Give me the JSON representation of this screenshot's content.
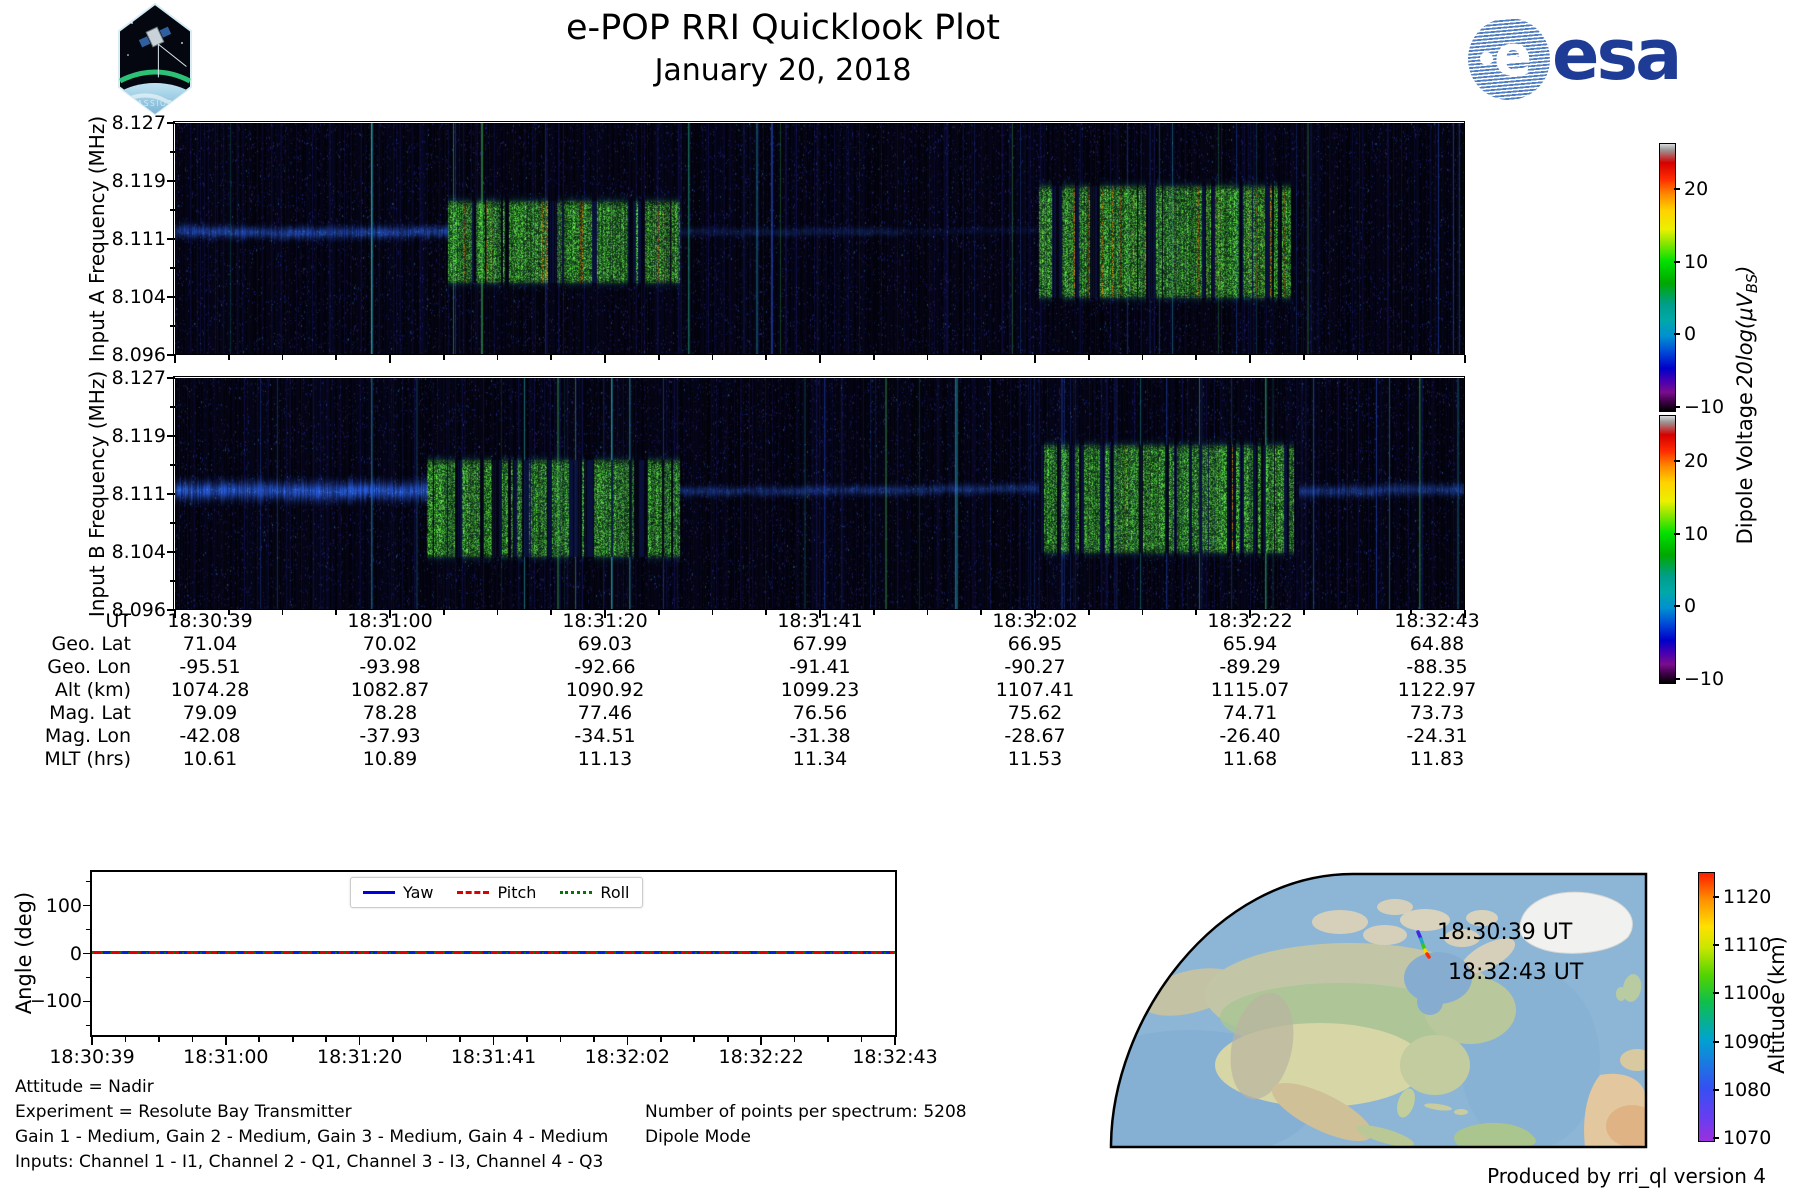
{
  "header": {
    "title": "e-POP RRI Quicklook Plot",
    "date": "January 20, 2018"
  },
  "logos": {
    "cassiope": "CASSIOPE",
    "esa": "esa"
  },
  "colorbar_label": {
    "text": "Dipole Voltage",
    "math": "20log(μV",
    "sub": "BS",
    "close": ")"
  },
  "annotations": {
    "left": [
      "Attitude = Nadir",
      "Experiment = Resolute Bay Transmitter",
      "Gain 1 - Medium, Gain 2 - Medium, Gain 3 - Medium, Gain 4 - Medium",
      "Inputs: Channel 1 - I1, Channel 2 - Q1, Channel 3 - I3, Channel 4 - Q3"
    ],
    "right": [
      "Number of points per spectrum: 5208",
      "Dipole Mode"
    ]
  },
  "map": {
    "start_label": "18:30:39 UT",
    "end_label": "18:32:43 UT"
  },
  "footer": {
    "credit": "Produced by rri_ql version 4"
  },
  "chart_data": [
    {
      "id": "spectrogram_A",
      "type": "heatmap",
      "ylabel": "Input A Frequency (MHz)",
      "xlabel": "UT",
      "x_range": [
        "18:30:39",
        "18:32:43"
      ],
      "y_range": [
        8.096,
        8.127
      ],
      "y_ticks": [
        "8.127",
        "8.119",
        "8.111",
        "8.104",
        "8.096"
      ],
      "colorbar": {
        "ticks": [
          "20",
          "10",
          "0",
          "−10"
        ],
        "range": [
          -13,
          27
        ],
        "cmap": "nipy_spectral"
      },
      "features": {
        "carrier_band_mhz": 8.1125,
        "transmit_blocks": [
          {
            "start": "18:31:05",
            "end": "18:31:28",
            "f_low_mhz": 8.1055,
            "f_high_mhz": 8.1165
          },
          {
            "start": "18:32:02",
            "end": "18:32:27",
            "f_low_mhz": 8.1035,
            "f_high_mhz": 8.1185
          }
        ]
      },
      "render": {
        "seed": 11,
        "nlines": 26,
        "bright": [
          {
            "x": 0.152,
            "c": "#22c8da",
            "a": 0.8
          },
          {
            "x": 0.398,
            "c": "#27b88a",
            "a": 0.55
          }
        ],
        "band": {
          "freq": 8.1125,
          "segments": [
            {
              "x0": 0.0,
              "x1": 0.212,
              "amp": 0.55,
              "width": 4.0
            },
            {
              "x0": 0.392,
              "x1": 0.56,
              "amp": 0.2,
              "width": 3.2
            },
            {
              "x0": 0.56,
              "x1": 0.668,
              "amp": 0.09,
              "width": 3.0
            }
          ]
        },
        "blocks": [
          {
            "x0": 0.212,
            "x1": 0.392,
            "fHigh": 8.1165,
            "fLow": 8.1055,
            "gap": 0.24,
            "orange": 0.06
          },
          {
            "x0": 0.67,
            "x1": 0.868,
            "fHigh": 8.1185,
            "fLow": 8.1035,
            "gap": 0.27,
            "orange": 0.1
          }
        ]
      }
    },
    {
      "id": "spectrogram_B",
      "type": "heatmap",
      "ylabel": "Input B Frequency (MHz)",
      "xlabel": "UT",
      "x_range": [
        "18:30:39",
        "18:32:43"
      ],
      "y_range": [
        8.096,
        8.127
      ],
      "y_ticks": [
        "8.127",
        "8.119",
        "8.111",
        "8.104",
        "8.096"
      ],
      "colorbar": {
        "ticks": [
          "20",
          "10",
          "0",
          "−10"
        ],
        "range": [
          -13,
          27
        ],
        "cmap": "nipy_spectral"
      },
      "features": {
        "carrier_band_mhz": 8.112,
        "transmit_blocks": [
          {
            "start": "18:31:03",
            "end": "18:31:28",
            "f_low_mhz": 8.103,
            "f_high_mhz": 8.116
          },
          {
            "start": "18:32:02",
            "end": "18:32:27",
            "f_low_mhz": 8.1035,
            "f_high_mhz": 8.118
          }
        ]
      },
      "render": {
        "seed": 29,
        "nlines": 36,
        "bright": [
          {
            "x": 0.152,
            "c": "#2290d0",
            "a": 0.6
          },
          {
            "x": 0.338,
            "c": "#22c8da",
            "a": 0.7
          },
          {
            "x": 0.352,
            "c": "#2fb4e0",
            "a": 0.5
          },
          {
            "x": 0.845,
            "c": "#26c87c",
            "a": 0.6
          },
          {
            "x": 0.965,
            "c": "#2bbf4e",
            "a": 0.55
          }
        ],
        "band": {
          "freq": 8.112,
          "segments": [
            {
              "x0": 0.0,
              "x1": 0.196,
              "amp": 0.75,
              "width": 6.0
            },
            {
              "x0": 0.392,
              "x1": 0.67,
              "amp": 0.36,
              "width": 3.5
            },
            {
              "x0": 0.872,
              "x1": 1.0,
              "amp": 0.42,
              "width": 4.0
            }
          ]
        },
        "blocks": [
          {
            "x0": 0.196,
            "x1": 0.392,
            "fHigh": 8.116,
            "fLow": 8.103,
            "gap": 0.31,
            "orange": 0.0
          },
          {
            "x0": 0.67,
            "x1": 0.868,
            "fHigh": 8.118,
            "fLow": 8.1035,
            "gap": 0.33,
            "orange": 0.02
          }
        ]
      }
    },
    {
      "id": "ephemeris",
      "type": "table",
      "rows": [
        {
          "label": "UT",
          "values": [
            "18:30:39",
            "18:31:00",
            "18:31:20",
            "18:31:41",
            "18:32:02",
            "18:32:22",
            "18:32:43"
          ]
        },
        {
          "label": "Geo. Lat",
          "values": [
            "71.04",
            "70.02",
            "69.03",
            "67.99",
            "66.95",
            "65.94",
            "64.88"
          ]
        },
        {
          "label": "Geo. Lon",
          "values": [
            "-95.51",
            "-93.98",
            "-92.66",
            "-91.41",
            "-90.27",
            "-89.29",
            "-88.35"
          ]
        },
        {
          "label": "Alt (km)",
          "values": [
            "1074.28",
            "1082.87",
            "1090.92",
            "1099.23",
            "1107.41",
            "1115.07",
            "1122.97"
          ]
        },
        {
          "label": "Mag. Lat",
          "values": [
            "79.09",
            "78.28",
            "77.46",
            "76.56",
            "75.62",
            "74.71",
            "73.73"
          ]
        },
        {
          "label": "Mag. Lon",
          "values": [
            "-42.08",
            "-37.93",
            "-34.51",
            "-31.38",
            "-28.67",
            "-26.40",
            "-24.31"
          ]
        },
        {
          "label": "MLT (hrs)",
          "values": [
            "10.61",
            "10.89",
            "11.13",
            "11.34",
            "11.53",
            "11.68",
            "11.83"
          ]
        }
      ]
    },
    {
      "id": "attitude",
      "type": "line",
      "ylabel": "Angle (deg)",
      "ylim": [
        -170,
        170
      ],
      "y_ticks": [
        "100",
        "0",
        "−100"
      ],
      "x": [
        "18:30:39",
        "18:31:00",
        "18:31:20",
        "18:31:41",
        "18:32:02",
        "18:32:22",
        "18:32:43"
      ],
      "series": [
        {
          "name": "Yaw",
          "color": "#0000dd",
          "style": "solid",
          "values": [
            0,
            0,
            0,
            0,
            0,
            0,
            0
          ]
        },
        {
          "name": "Pitch",
          "color": "#dd0000",
          "style": "dashed",
          "values": [
            0,
            0,
            0,
            0,
            0,
            0,
            0
          ]
        },
        {
          "name": "Roll",
          "color": "#007700",
          "style": "dotted",
          "values": [
            0,
            0,
            0,
            0,
            0,
            0,
            0
          ]
        }
      ],
      "legend_position": "top center",
      "grid": false
    },
    {
      "id": "ground_track",
      "type": "map",
      "track": {
        "start_ut": "18:30:39",
        "end_ut": "18:32:43",
        "start_alt_km": 1074.28,
        "end_alt_km": 1122.97,
        "start_geo": [
          71.04,
          -95.51
        ],
        "end_geo": [
          64.88,
          -88.35
        ]
      },
      "colorbar": {
        "label": "Altitude (km)",
        "ticks": [
          "1120",
          "1110",
          "1100",
          "1090",
          "1080",
          "1070"
        ],
        "range": [
          1070,
          1125
        ],
        "cmap": "rainbow"
      }
    }
  ]
}
